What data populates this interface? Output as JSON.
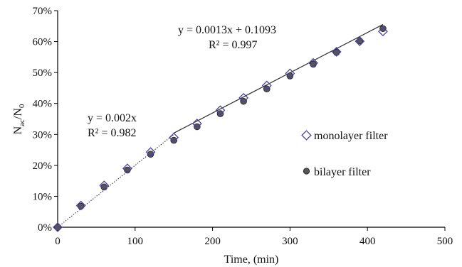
{
  "chart_data": {
    "type": "scatter",
    "title": "",
    "xlabel": "Time, (min)",
    "ylabel_main": "N",
    "ylabel_sub1": "ac",
    "ylabel_slash": "/N",
    "ylabel_sub2": "0",
    "xlim": [
      0,
      500
    ],
    "ylim": [
      0,
      0.7
    ],
    "x_ticks": [
      0,
      100,
      200,
      300,
      400,
      500
    ],
    "x_tick_labels": [
      "0",
      "100",
      "200",
      "300",
      "400",
      "500"
    ],
    "y_ticks": [
      0,
      0.1,
      0.2,
      0.3,
      0.4,
      0.5,
      0.6,
      0.7
    ],
    "y_tick_labels": [
      "0%",
      "10%",
      "20%",
      "30%",
      "40%",
      "50%",
      "60%",
      "70%"
    ],
    "grid": false,
    "legend_position": "right",
    "series": [
      {
        "name": "monolayer filter",
        "marker": "diamond",
        "color": "#4b3fa6",
        "x": [
          0,
          30,
          60,
          90,
          120,
          150,
          180,
          210,
          240,
          270,
          300,
          330,
          360,
          390,
          420
        ],
        "y": [
          0.0,
          0.07,
          0.135,
          0.19,
          0.243,
          0.29,
          0.335,
          0.378,
          0.418,
          0.458,
          0.497,
          0.531,
          0.567,
          0.601,
          0.633
        ]
      },
      {
        "name": "bilayer filter",
        "marker": "circle",
        "color": "#555555",
        "x": [
          0,
          30,
          60,
          90,
          120,
          150,
          180,
          210,
          240,
          270,
          300,
          330,
          360,
          390,
          420
        ],
        "y": [
          0.0,
          0.068,
          0.13,
          0.185,
          0.236,
          0.281,
          0.325,
          0.367,
          0.407,
          0.447,
          0.489,
          0.527,
          0.565,
          0.602,
          0.642
        ]
      }
    ],
    "trendlines": [
      {
        "style": "dotted",
        "x_range": [
          0,
          150
        ],
        "slope": 0.002,
        "intercept": 0
      },
      {
        "style": "solid",
        "x_range": [
          150,
          420
        ],
        "slope": 0.0013,
        "intercept": 0.1093
      }
    ],
    "annotations": {
      "fit1_eq": "y = 0.002x",
      "fit1_r2": "R² = 0.982",
      "fit2_eq": "y = 0.0013x + 0.1093",
      "fit2_r2": "R² = 0.997"
    }
  }
}
